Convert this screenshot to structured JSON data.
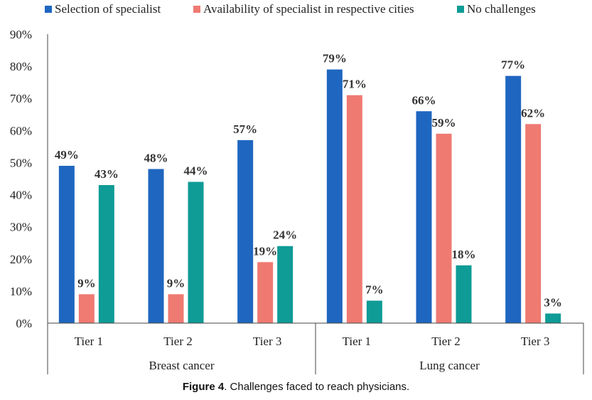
{
  "chart_data": {
    "type": "bar",
    "groups": [
      {
        "label": "Breast cancer",
        "categories": [
          "Tier 1",
          "Tier 2",
          "Tier 3"
        ]
      },
      {
        "label": "Lung cancer",
        "categories": [
          "Tier 1",
          "Tier 2",
          "Tier 3"
        ]
      }
    ],
    "series": [
      {
        "name": "Selection of specialist",
        "color": "#1f66c0",
        "values": [
          49,
          48,
          57,
          79,
          66,
          77
        ]
      },
      {
        "name": "Availability of specialist in respective cities",
        "color": "#ef7a72",
        "values": [
          9,
          9,
          19,
          71,
          59,
          62
        ]
      },
      {
        "name": "No challenges",
        "color": "#0f9b96",
        "values": [
          43,
          44,
          24,
          7,
          18,
          3
        ]
      }
    ],
    "value_suffix": "%",
    "ylim": [
      0,
      90
    ],
    "yticks": [
      "0%",
      "10%",
      "20%",
      "30%",
      "40%",
      "50%",
      "60%",
      "70%",
      "80%",
      "90%"
    ],
    "grid": false,
    "legend_position": "top"
  },
  "caption": {
    "prefix": "Figure 4",
    "text": ". Challenges faced to reach physicians."
  }
}
